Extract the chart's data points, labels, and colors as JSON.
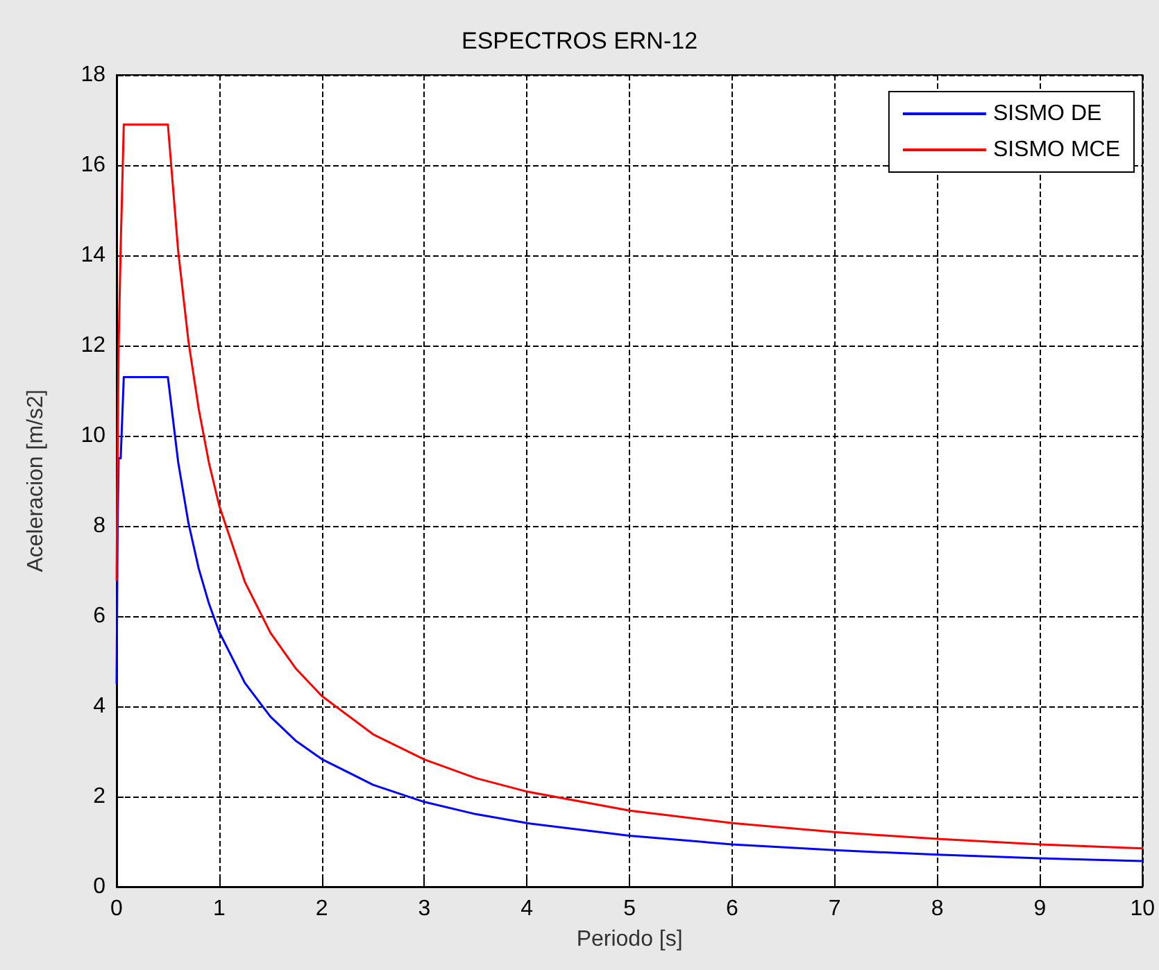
{
  "chart_data": {
    "type": "line",
    "title": "ESPECTROS ERN-12",
    "xlabel": "Periodo [s]",
    "ylabel": "Aceleracion [m/s2]",
    "x": [
      0,
      0.01,
      0.02,
      0.04,
      0.07,
      0.5,
      0.6,
      0.7,
      0.8,
      0.9,
      1,
      1.25,
      1.5,
      1.75,
      2,
      2.5,
      3,
      3.5,
      4,
      5,
      6,
      7,
      8,
      9,
      10
    ],
    "series": [
      {
        "name": "SISMO DE",
        "color": "#0000ff",
        "values": [
          4.5,
          8.0,
          9.5,
          9.5,
          11.3,
          11.3,
          9.42,
          8.07,
          7.06,
          6.28,
          5.65,
          4.52,
          3.77,
          3.23,
          2.83,
          2.26,
          1.88,
          1.61,
          1.41,
          1.13,
          0.94,
          0.81,
          0.71,
          0.63,
          0.57
        ]
      },
      {
        "name": "SISMO MCE",
        "color": "#ff0000",
        "values": [
          6.8,
          9.7,
          12.0,
          14.2,
          16.9,
          16.9,
          14.1,
          12.1,
          10.6,
          9.4,
          8.45,
          6.76,
          5.63,
          4.83,
          4.23,
          3.38,
          2.82,
          2.41,
          2.11,
          1.69,
          1.41,
          1.21,
          1.06,
          0.94,
          0.85
        ]
      }
    ],
    "xlim": [
      0,
      10
    ],
    "xticks": [
      0,
      1,
      2,
      3,
      4,
      5,
      6,
      7,
      8,
      9,
      10
    ],
    "ylim": [
      0,
      18
    ],
    "yticks": [
      0,
      2,
      4,
      6,
      8,
      10,
      12,
      14,
      16,
      18
    ],
    "grid": true,
    "legend": "top right",
    "marker": "none",
    "line_style": "solid"
  }
}
